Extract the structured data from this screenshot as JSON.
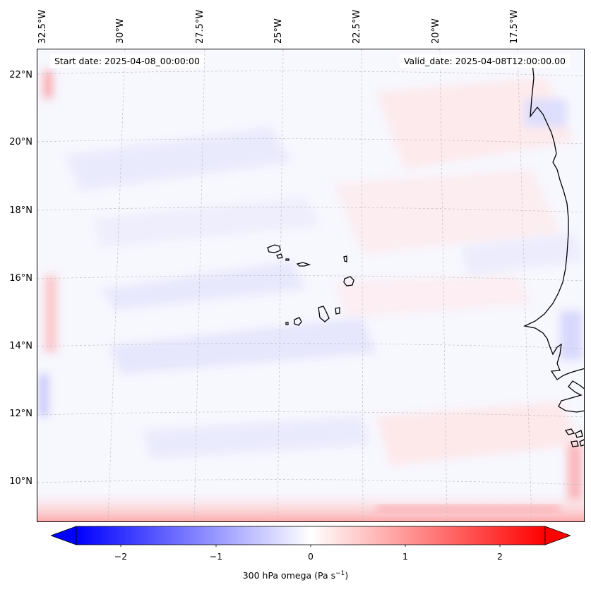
{
  "map": {
    "start_date": "Start date: 2025-04-08_00:00:00",
    "valid_date": "Valid_date: 2025-04-08T12:00:00.00",
    "longitude_labels": [
      "32.5°W",
      "30°W",
      "27.5°W",
      "25°W",
      "22.5°W",
      "20°W",
      "17.5°W"
    ],
    "latitude_labels": [
      "22°N",
      "20°N",
      "18°N",
      "16°N",
      "14°N",
      "12°N",
      "10°N"
    ],
    "lon_range": [
      -33,
      -15.5
    ],
    "lat_range": [
      8.8,
      22.8
    ],
    "variable": "300 hPa omega",
    "coastline_color": "#000000",
    "gridline_color": "#bbbbbb"
  },
  "colorbar": {
    "label_text": "300 hPa omega (Pa s",
    "label_superscript": "−1",
    "label_close": ")",
    "tick_labels": [
      "−2",
      "−1",
      "0",
      "1",
      "2"
    ],
    "tick_values": [
      -2,
      -1,
      0,
      1,
      2
    ],
    "range": [
      -2.5,
      2.5
    ],
    "extend": "both",
    "low_color": "#0000ff",
    "mid_color": "#ffffff",
    "high_color": "#ff0000"
  }
}
